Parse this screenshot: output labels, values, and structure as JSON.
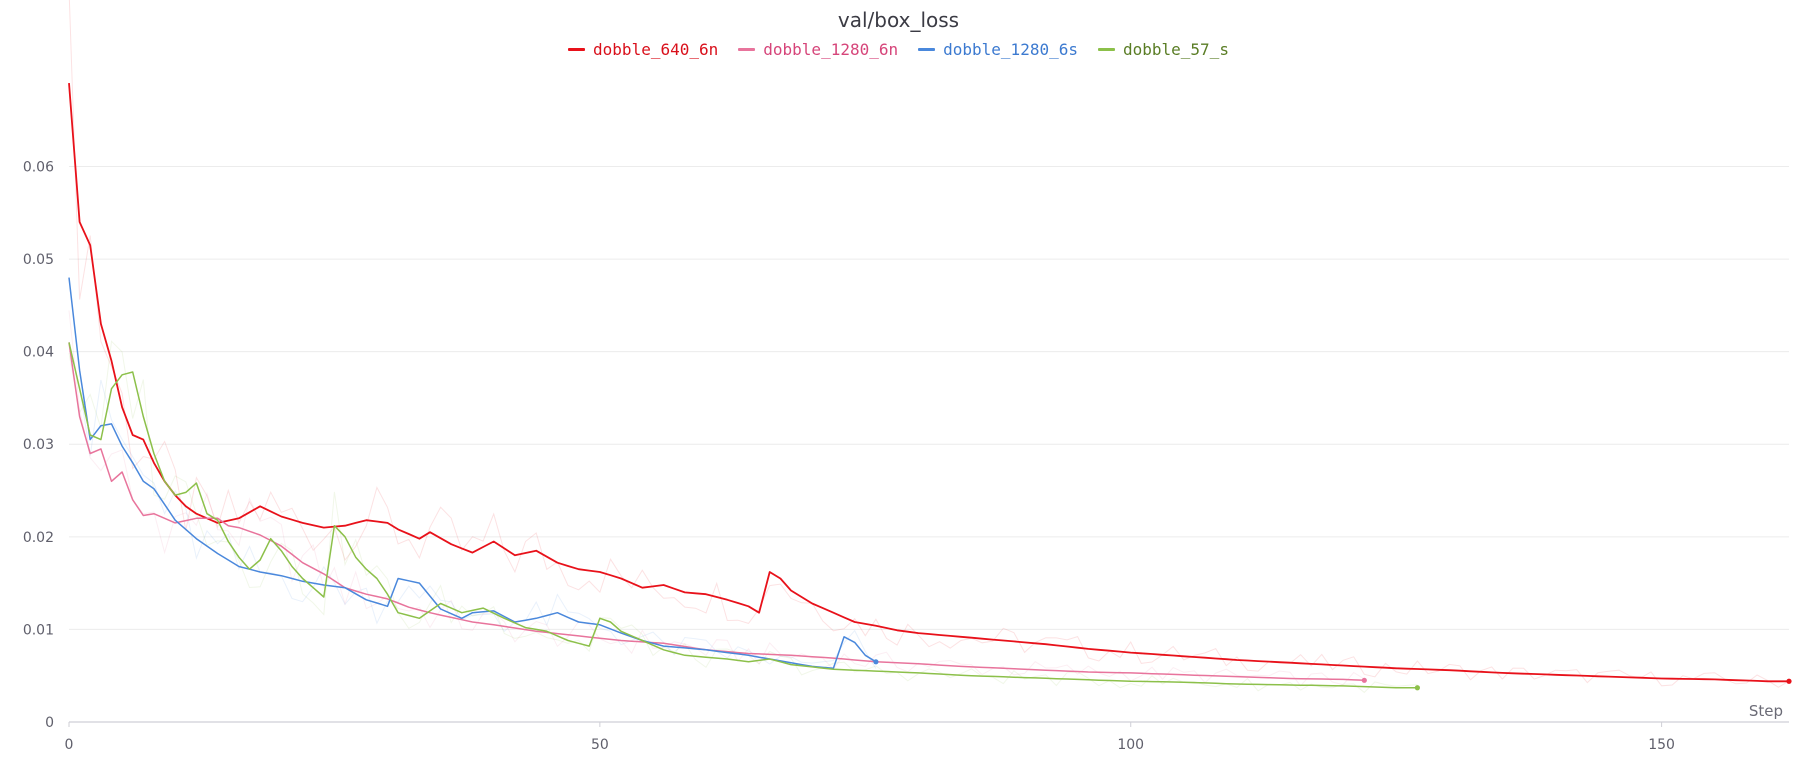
{
  "chart_data": {
    "type": "line",
    "title": "val/box_loss",
    "xlabel": "Step",
    "ylabel": "",
    "xlim": [
      0,
      162
    ],
    "ylim": [
      0,
      0.0715
    ],
    "x_ticks": [
      0,
      50,
      100,
      150
    ],
    "y_ticks": [
      0,
      0.01,
      0.02,
      0.03,
      0.04,
      0.05,
      0.06
    ],
    "y_tick_labels": [
      "0",
      "0.01",
      "0.02",
      "0.03",
      "0.04",
      "0.05",
      "0.06"
    ],
    "grid": true,
    "legend_position": "top-center",
    "series": [
      {
        "name": "dobble_640_6n",
        "color": "#e8111a",
        "text_color": "#d9101b",
        "anchors": [
          [
            0,
            0.069
          ],
          [
            1,
            0.054
          ],
          [
            2,
            0.0515
          ],
          [
            3,
            0.043
          ],
          [
            4,
            0.039
          ],
          [
            5,
            0.034
          ],
          [
            6,
            0.031
          ],
          [
            7,
            0.0305
          ],
          [
            8,
            0.028
          ],
          [
            9,
            0.026
          ],
          [
            10,
            0.0245
          ],
          [
            11,
            0.0233
          ],
          [
            12,
            0.0225
          ],
          [
            14,
            0.0215
          ],
          [
            16,
            0.022
          ],
          [
            18,
            0.0233
          ],
          [
            20,
            0.0222
          ],
          [
            22,
            0.0215
          ],
          [
            24,
            0.021
          ],
          [
            26,
            0.0212
          ],
          [
            28,
            0.0218
          ],
          [
            30,
            0.0215
          ],
          [
            31,
            0.0208
          ],
          [
            33,
            0.0198
          ],
          [
            34,
            0.0205
          ],
          [
            36,
            0.0192
          ],
          [
            38,
            0.0183
          ],
          [
            40,
            0.0195
          ],
          [
            42,
            0.018
          ],
          [
            44,
            0.0185
          ],
          [
            46,
            0.0172
          ],
          [
            48,
            0.0165
          ],
          [
            50,
            0.0162
          ],
          [
            52,
            0.0155
          ],
          [
            54,
            0.0145
          ],
          [
            56,
            0.0148
          ],
          [
            58,
            0.014
          ],
          [
            60,
            0.0138
          ],
          [
            62,
            0.0132
          ],
          [
            64,
            0.0125
          ],
          [
            65,
            0.0118
          ],
          [
            66,
            0.0162
          ],
          [
            67,
            0.0155
          ],
          [
            68,
            0.0142
          ],
          [
            70,
            0.0128
          ],
          [
            72,
            0.0118
          ],
          [
            74,
            0.0108
          ],
          [
            76,
            0.0104
          ],
          [
            78,
            0.0099
          ],
          [
            80,
            0.0096
          ],
          [
            84,
            0.0092
          ],
          [
            88,
            0.0088
          ],
          [
            92,
            0.0084
          ],
          [
            96,
            0.0079
          ],
          [
            100,
            0.0075
          ],
          [
            105,
            0.0071
          ],
          [
            110,
            0.0067
          ],
          [
            115,
            0.0064
          ],
          [
            120,
            0.0061
          ],
          [
            125,
            0.0058
          ],
          [
            130,
            0.0056
          ],
          [
            135,
            0.0053
          ],
          [
            140,
            0.0051
          ],
          [
            145,
            0.0049
          ],
          [
            150,
            0.0047
          ],
          [
            155,
            0.0046
          ],
          [
            160,
            0.0044
          ],
          [
            162,
            0.0044
          ]
        ]
      },
      {
        "name": "dobble_1280_6n",
        "color": "#e8749c",
        "text_color": "#d6457a",
        "anchors": [
          [
            0,
            0.041
          ],
          [
            1,
            0.033
          ],
          [
            2,
            0.029
          ],
          [
            3,
            0.0295
          ],
          [
            4,
            0.026
          ],
          [
            5,
            0.027
          ],
          [
            6,
            0.024
          ],
          [
            7,
            0.0223
          ],
          [
            8,
            0.0225
          ],
          [
            9,
            0.022
          ],
          [
            10,
            0.0215
          ],
          [
            12,
            0.022
          ],
          [
            14,
            0.022
          ],
          [
            15,
            0.0212
          ],
          [
            16,
            0.021
          ],
          [
            18,
            0.0202
          ],
          [
            20,
            0.019
          ],
          [
            22,
            0.0172
          ],
          [
            24,
            0.016
          ],
          [
            26,
            0.0145
          ],
          [
            28,
            0.0138
          ],
          [
            30,
            0.0133
          ],
          [
            32,
            0.0124
          ],
          [
            34,
            0.0118
          ],
          [
            36,
            0.0113
          ],
          [
            38,
            0.0108
          ],
          [
            40,
            0.0105
          ],
          [
            44,
            0.0098
          ],
          [
            48,
            0.0093
          ],
          [
            52,
            0.0088
          ],
          [
            56,
            0.0085
          ],
          [
            60,
            0.0078
          ],
          [
            64,
            0.0074
          ],
          [
            68,
            0.0072
          ],
          [
            72,
            0.0069
          ],
          [
            76,
            0.0065
          ],
          [
            80,
            0.0063
          ],
          [
            84,
            0.006
          ],
          [
            88,
            0.0058
          ],
          [
            92,
            0.0056
          ],
          [
            96,
            0.0054
          ],
          [
            100,
            0.0053
          ],
          [
            105,
            0.0051
          ],
          [
            110,
            0.0049
          ],
          [
            115,
            0.0047
          ],
          [
            120,
            0.0046
          ],
          [
            122,
            0.0045
          ]
        ]
      },
      {
        "name": "dobble_1280_6s",
        "color": "#4a88dc",
        "text_color": "#3c7ad0",
        "anchors": [
          [
            0,
            0.048
          ],
          [
            1,
            0.038
          ],
          [
            2,
            0.0305
          ],
          [
            3,
            0.032
          ],
          [
            4,
            0.0322
          ],
          [
            5,
            0.0298
          ],
          [
            6,
            0.028
          ],
          [
            7,
            0.026
          ],
          [
            8,
            0.0252
          ],
          [
            9,
            0.0235
          ],
          [
            10,
            0.0218
          ],
          [
            12,
            0.0198
          ],
          [
            14,
            0.0182
          ],
          [
            16,
            0.0168
          ],
          [
            18,
            0.0162
          ],
          [
            20,
            0.0158
          ],
          [
            22,
            0.0152
          ],
          [
            24,
            0.0148
          ],
          [
            26,
            0.0145
          ],
          [
            28,
            0.0132
          ],
          [
            30,
            0.0125
          ],
          [
            31,
            0.0155
          ],
          [
            33,
            0.015
          ],
          [
            35,
            0.0122
          ],
          [
            37,
            0.0112
          ],
          [
            38,
            0.0118
          ],
          [
            40,
            0.012
          ],
          [
            42,
            0.0108
          ],
          [
            44,
            0.0112
          ],
          [
            46,
            0.0118
          ],
          [
            48,
            0.0108
          ],
          [
            50,
            0.0105
          ],
          [
            52,
            0.0096
          ],
          [
            54,
            0.0088
          ],
          [
            56,
            0.0082
          ],
          [
            58,
            0.008
          ],
          [
            60,
            0.0078
          ],
          [
            62,
            0.0075
          ],
          [
            64,
            0.0072
          ],
          [
            66,
            0.0068
          ],
          [
            68,
            0.0064
          ],
          [
            70,
            0.006
          ],
          [
            72,
            0.0058
          ],
          [
            73,
            0.0092
          ],
          [
            74,
            0.0086
          ],
          [
            75,
            0.0072
          ],
          [
            76,
            0.0065
          ]
        ]
      },
      {
        "name": "dobble_57_s",
        "color": "#8cc04a",
        "text_color": "#5a7d25",
        "anchors": [
          [
            0,
            0.041
          ],
          [
            1,
            0.036
          ],
          [
            2,
            0.031
          ],
          [
            3,
            0.0305
          ],
          [
            4,
            0.036
          ],
          [
            5,
            0.0375
          ],
          [
            6,
            0.0378
          ],
          [
            7,
            0.033
          ],
          [
            8,
            0.029
          ],
          [
            9,
            0.026
          ],
          [
            10,
            0.0245
          ],
          [
            11,
            0.0248
          ],
          [
            12,
            0.0258
          ],
          [
            13,
            0.0225
          ],
          [
            14,
            0.0218
          ],
          [
            15,
            0.0195
          ],
          [
            16,
            0.0178
          ],
          [
            17,
            0.0165
          ],
          [
            18,
            0.0175
          ],
          [
            19,
            0.0198
          ],
          [
            20,
            0.0185
          ],
          [
            21,
            0.0168
          ],
          [
            22,
            0.0155
          ],
          [
            23,
            0.0145
          ],
          [
            24,
            0.0135
          ],
          [
            25,
            0.0212
          ],
          [
            26,
            0.02
          ],
          [
            27,
            0.0178
          ],
          [
            28,
            0.0165
          ],
          [
            29,
            0.0155
          ],
          [
            30,
            0.0138
          ],
          [
            31,
            0.0118
          ],
          [
            33,
            0.0112
          ],
          [
            35,
            0.0128
          ],
          [
            37,
            0.0118
          ],
          [
            39,
            0.0123
          ],
          [
            41,
            0.0112
          ],
          [
            43,
            0.0102
          ],
          [
            45,
            0.0098
          ],
          [
            47,
            0.0088
          ],
          [
            49,
            0.0082
          ],
          [
            50,
            0.0112
          ],
          [
            51,
            0.0108
          ],
          [
            52,
            0.0098
          ],
          [
            54,
            0.0088
          ],
          [
            56,
            0.0078
          ],
          [
            58,
            0.0072
          ],
          [
            62,
            0.0068
          ],
          [
            64,
            0.0065
          ],
          [
            66,
            0.0068
          ],
          [
            68,
            0.0062
          ],
          [
            72,
            0.0057
          ],
          [
            76,
            0.0055
          ],
          [
            80,
            0.0053
          ],
          [
            85,
            0.005
          ],
          [
            90,
            0.0048
          ],
          [
            95,
            0.0046
          ],
          [
            100,
            0.0044
          ],
          [
            105,
            0.0043
          ],
          [
            110,
            0.0041
          ],
          [
            115,
            0.004
          ],
          [
            120,
            0.0039
          ],
          [
            125,
            0.0037
          ],
          [
            127,
            0.0037
          ]
        ]
      }
    ]
  }
}
